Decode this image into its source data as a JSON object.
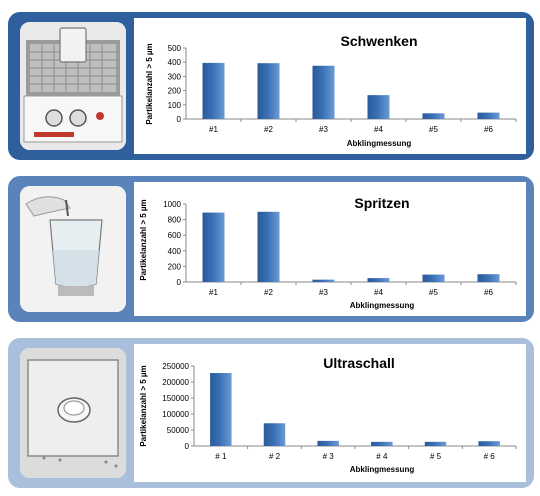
{
  "chart_data": [
    {
      "type": "bar",
      "title": "Schwenken",
      "xlabel": "Abklingmessung",
      "ylabel": "Partikelanzahl > 5 µm",
      "categories": [
        "#1",
        "#2",
        "#3",
        "#4",
        "#5",
        "#6"
      ],
      "values": [
        395,
        393,
        375,
        168,
        40,
        45
      ],
      "ylim": [
        0,
        500
      ],
      "yticks": [
        "0",
        "100",
        "200",
        "300",
        "400",
        "500"
      ],
      "grid": false,
      "bar_color": "#3a6fb5"
    },
    {
      "type": "bar",
      "title": "Spritzen",
      "xlabel": "Abklingmessung",
      "ylabel": "Partikelanzahl > 5 µm",
      "categories": [
        "#1",
        "#2",
        "#3",
        "#4",
        "#5",
        "#6"
      ],
      "values": [
        890,
        900,
        30,
        50,
        95,
        100
      ],
      "ylim": [
        0,
        1000
      ],
      "yticks": [
        "0",
        "200",
        "400",
        "600",
        "800",
        "1000"
      ],
      "grid": false,
      "bar_color": "#3a6fb5"
    },
    {
      "type": "bar",
      "title": "Ultraschall",
      "xlabel": "Abklingmessung",
      "ylabel": "Partikelanzahl > 5 µm",
      "categories": [
        "# 1",
        "# 2",
        "# 3",
        "# 4",
        "# 5",
        "# 6"
      ],
      "values": [
        228000,
        71000,
        16000,
        13000,
        13000,
        15000
      ],
      "ylim": [
        0,
        250000
      ],
      "yticks": [
        "0",
        "50000",
        "100000",
        "150000",
        "200000",
        "250000"
      ],
      "grid": false,
      "bar_color": "#3a6fb5"
    }
  ]
}
